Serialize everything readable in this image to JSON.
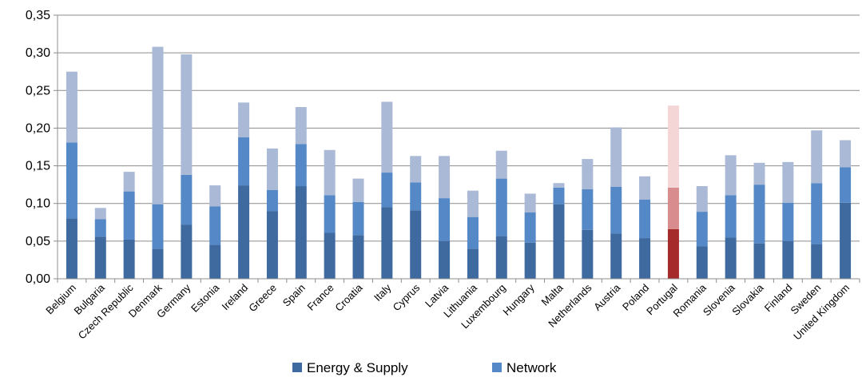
{
  "chart_data": {
    "type": "bar",
    "stacked": true,
    "categories": [
      "Belgium",
      "Bulgaria",
      "Czech Republic",
      "Denmark",
      "Germany",
      "Estonia",
      "Ireland",
      "Greece",
      "Spain",
      "France",
      "Croatia",
      "Italy",
      "Cyprus",
      "Latvia",
      "Lithuania",
      "Luxembourg",
      "Hungary",
      "Malta",
      "Netherlands",
      "Austria",
      "Poland",
      "Portugal",
      "Romania",
      "Slovenia",
      "Slovakia",
      "Finland",
      "Sweden",
      "United Kingdom"
    ],
    "series": [
      {
        "name": "Energy & Supply",
        "color": "#3e6aa0",
        "values": [
          0.08,
          0.056,
          0.052,
          0.04,
          0.072,
          0.045,
          0.124,
          0.09,
          0.123,
          0.061,
          0.058,
          0.095,
          0.091,
          0.05,
          0.04,
          0.057,
          0.048,
          0.099,
          0.065,
          0.06,
          0.054,
          0.066,
          0.043,
          0.055,
          0.047,
          0.05,
          0.046,
          0.101
        ]
      },
      {
        "name": "Network",
        "color": "#5588c6",
        "values": [
          0.101,
          0.023,
          0.064,
          0.059,
          0.066,
          0.051,
          0.064,
          0.028,
          0.056,
          0.05,
          0.044,
          0.046,
          0.037,
          0.057,
          0.042,
          0.076,
          0.04,
          0.022,
          0.054,
          0.062,
          0.051,
          0.055,
          0.046,
          0.056,
          0.078,
          0.051,
          0.081,
          0.047
        ]
      },
      {
        "color": "#a9b9d6",
        "values": [
          0.094,
          0.015,
          0.026,
          0.209,
          0.16,
          0.028,
          0.046,
          0.055,
          0.049,
          0.06,
          0.031,
          0.094,
          0.035,
          0.056,
          0.035,
          0.037,
          0.025,
          0.006,
          0.04,
          0.079,
          0.031,
          0.109,
          0.034,
          0.053,
          0.029,
          0.054,
          0.07,
          0.036
        ]
      }
    ],
    "highlight": {
      "category": "Portugal",
      "colors": [
        "#a52a2a",
        "#d88c8e",
        "#f4d6d7"
      ]
    },
    "ylim": [
      0,
      0.35
    ],
    "yticks": [
      "0,00",
      "0,05",
      "0,10",
      "0,15",
      "0,20",
      "0,25",
      "0,30",
      "0,35"
    ],
    "grid": "horizontal",
    "legend_position": "bottom",
    "title": "",
    "xlabel": "",
    "ylabel": ""
  }
}
